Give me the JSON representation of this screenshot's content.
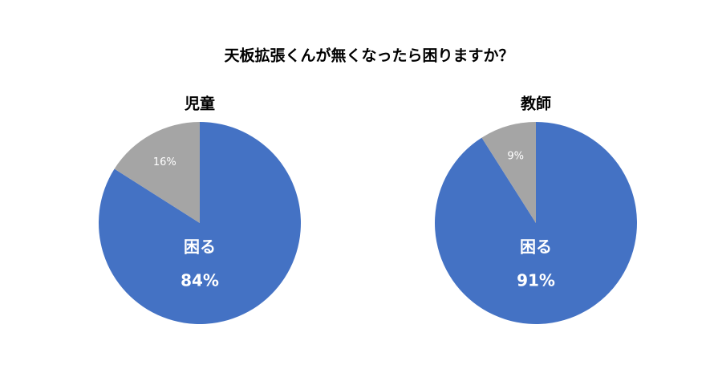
{
  "title": "天板拡張くんが無くなったら困りますか？",
  "chart_data": [
    {
      "type": "pie",
      "title": "児童",
      "categories": [
        "困る",
        null
      ],
      "values": [
        84,
        16
      ],
      "value_labels": [
        "84%",
        "16%"
      ],
      "colors": [
        "#4472c4",
        "#a5a5a5"
      ]
    },
    {
      "type": "pie",
      "title": "教師",
      "categories": [
        "困る",
        null
      ],
      "values": [
        91,
        9
      ],
      "value_labels": [
        "91%",
        "9%"
      ],
      "colors": [
        "#4472c4",
        "#a5a5a5"
      ]
    }
  ]
}
